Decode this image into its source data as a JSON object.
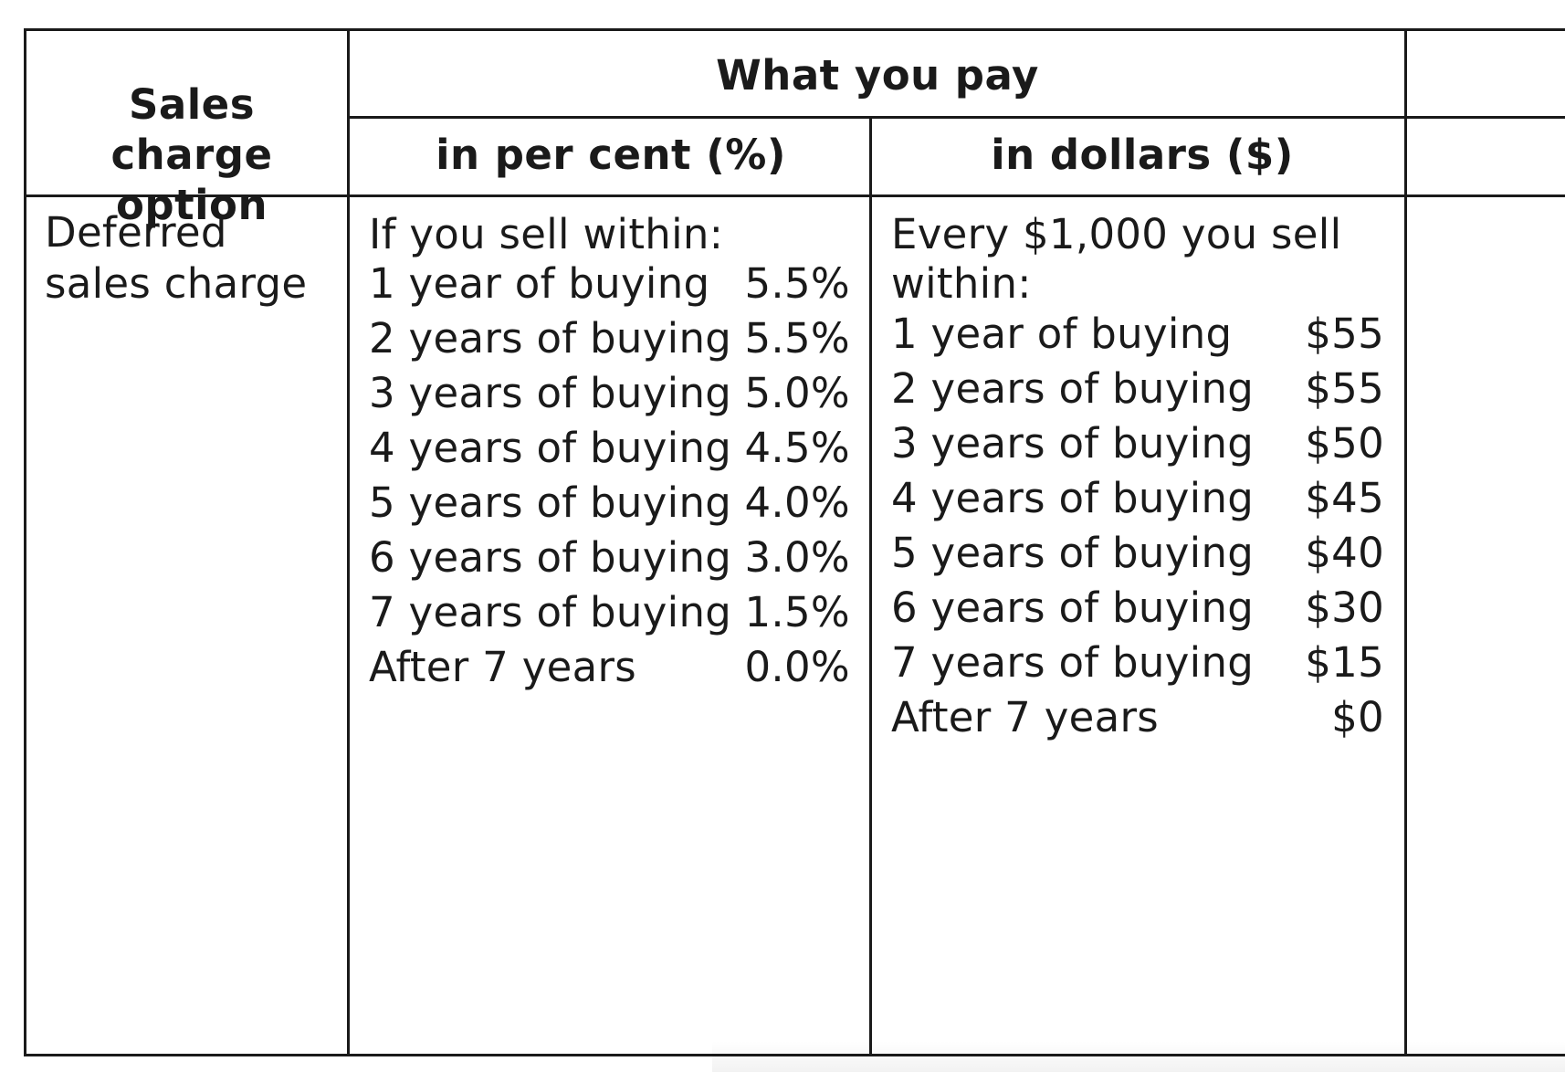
{
  "table": {
    "header": {
      "option_col": "Sales charge option",
      "group": "What you pay",
      "percent_col": "in per cent (%)",
      "dollar_col": "in dollars ($)"
    },
    "row": {
      "option": "Deferred sales charge",
      "percent_intro": "If you sell within:",
      "percent_items": [
        {
          "label": "1 year of buying",
          "value": "5.5%"
        },
        {
          "label": "2 years of buying",
          "value": "5.5%"
        },
        {
          "label": "3 years of buying",
          "value": "5.0%"
        },
        {
          "label": "4 years of buying",
          "value": "4.5%"
        },
        {
          "label": "5 years of buying",
          "value": "4.0%"
        },
        {
          "label": "6 years of buying",
          "value": "3.0%"
        },
        {
          "label": "7 years of buying",
          "value": "1.5%"
        },
        {
          "label": "After 7 years",
          "value": "0.0%"
        }
      ],
      "dollar_intro_line1": "Every $1,000 you sell",
      "dollar_intro_line2": "within:",
      "dollar_items": [
        {
          "label": "1 year of buying",
          "value": "$55"
        },
        {
          "label": "2 years of buying",
          "value": "$55"
        },
        {
          "label": "3 years of buying",
          "value": "$50"
        },
        {
          "label": "4 years of buying",
          "value": "$45"
        },
        {
          "label": "5 years of buying",
          "value": "$40"
        },
        {
          "label": "6 years of buying",
          "value": "$30"
        },
        {
          "label": "7 years of buying",
          "value": "$15"
        },
        {
          "label": "After 7 years",
          "value": "$0"
        }
      ]
    }
  }
}
